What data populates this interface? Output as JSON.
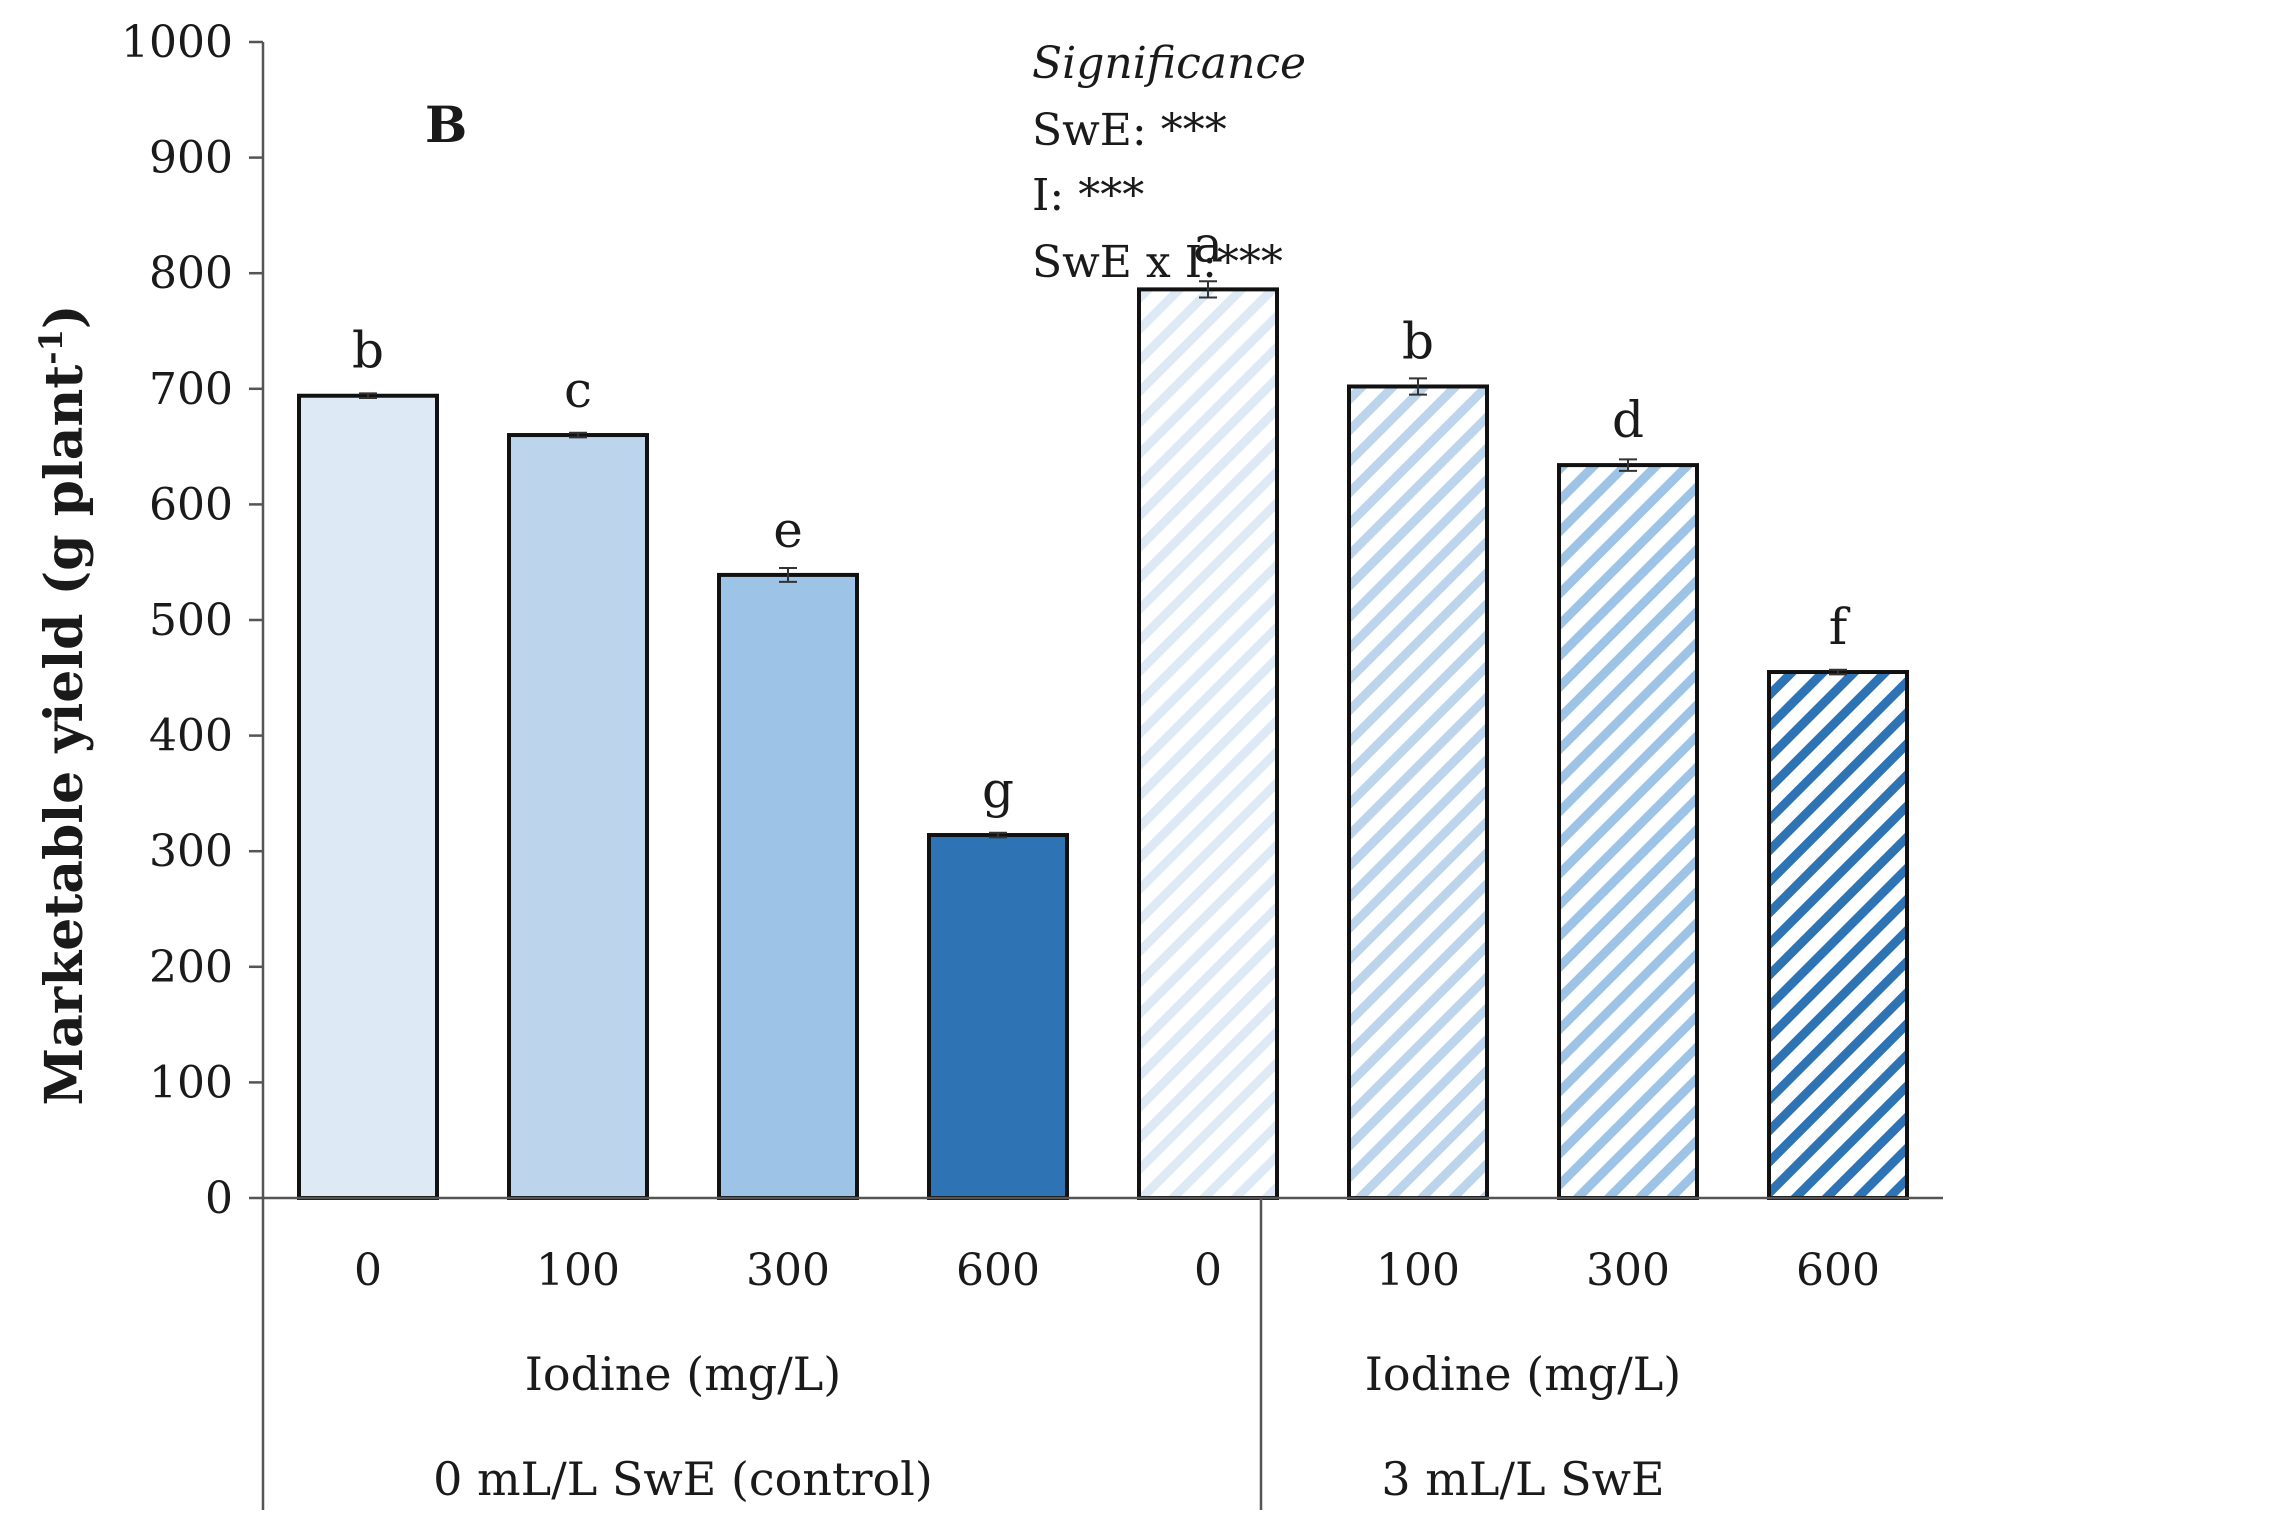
{
  "chart_data": {
    "type": "bar",
    "panel_label": "B",
    "ylabel": "Marketable yield (g plant",
    "ylabel_sup": "-1",
    "ylabel_close": ")",
    "ylim": [
      0,
      1000
    ],
    "yticks": [
      0,
      100,
      200,
      300,
      400,
      500,
      600,
      700,
      800,
      900,
      1000
    ],
    "significance": {
      "title": "Significance",
      "lines": [
        "SwE: ***",
        "I: ***",
        "SwE x I:***"
      ]
    },
    "groups": [
      {
        "name": "0 mL/L SwE (control)",
        "xlabel": "Iodine (mg/L)",
        "categories": [
          "0",
          "100",
          "300",
          "600"
        ],
        "values": [
          694,
          660,
          539,
          314
        ],
        "errors": [
          2,
          2,
          6,
          2
        ],
        "letters": [
          "b",
          "c",
          "e",
          "g"
        ],
        "colors": [
          "#dde9f5",
          "#bcd5ec",
          "#9dc3e6",
          "#2e74b5"
        ],
        "pattern": "solid"
      },
      {
        "name": "3 mL/L SwE",
        "xlabel": "Iodine (mg/L)",
        "categories": [
          "0",
          "100",
          "300",
          "600"
        ],
        "values": [
          786,
          702,
          634,
          455
        ],
        "errors": [
          7,
          7,
          5,
          2
        ],
        "letters": [
          "a",
          "b",
          "d",
          "f"
        ],
        "colors": [
          "#dde9f5",
          "#bcd5ec",
          "#9dc3e6",
          "#2e74b5"
        ],
        "pattern": "hatched"
      }
    ]
  }
}
